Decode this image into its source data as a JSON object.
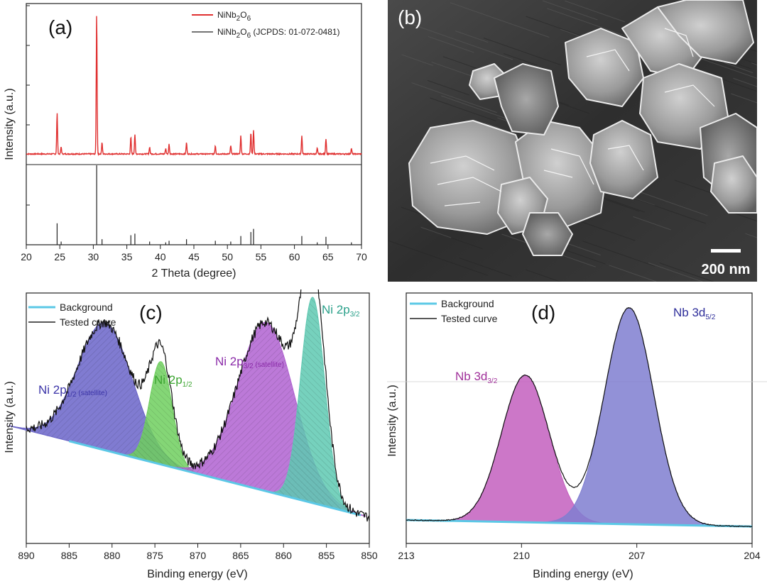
{
  "panel_a": {
    "letter": "(a)",
    "xlabel": "2 Theta (degree)",
    "ylabel": "Intensity (a.u.)",
    "legend": [
      {
        "label_main": "NiNb",
        "sub1": "2",
        "mid": "O",
        "sub2": "6",
        "tail": "",
        "color": "#e03030"
      },
      {
        "label_main": "NiNb",
        "sub1": "2",
        "mid": "O",
        "sub2": "6",
        "tail": " (JCPDS: 01-072-0481)",
        "color": "#222222"
      }
    ],
    "x_ticks": [
      "20",
      "25",
      "30",
      "35",
      "40",
      "45",
      "50",
      "55",
      "60",
      "65",
      "70"
    ]
  },
  "panel_b": {
    "letter": "(b)",
    "scale_bar": "200 nm"
  },
  "panel_c": {
    "letter": "(c)",
    "xlabel": "Binding energy (eV)",
    "ylabel": "Intensity (a.u.)",
    "legend": [
      {
        "label": "Background",
        "color": "#5bc8e6"
      },
      {
        "label": "Tested curve",
        "color": "#222222"
      }
    ],
    "x_ticks": [
      "890",
      "885",
      "880",
      "875",
      "870",
      "865",
      "860",
      "855",
      "850"
    ],
    "peaks": [
      {
        "main": "Ni 2p",
        "sub": "1/2",
        "extra": " (satellite)",
        "color": "#3b34a8"
      },
      {
        "main": "Ni 2p",
        "sub": "1/2",
        "extra": "",
        "color": "#3da532"
      },
      {
        "main": "Ni 2p",
        "sub": "3/2",
        "extra": " (satellite)",
        "color": "#8a2aa8"
      },
      {
        "main": "Ni 2p",
        "sub": "3/2",
        "extra": "",
        "color": "#2aa08a"
      }
    ]
  },
  "panel_d": {
    "letter": "(d)",
    "xlabel": "Binding energy (eV)",
    "ylabel": "Intensity (a.u.)",
    "legend": [
      {
        "label": "Background",
        "color": "#5bc8e6"
      },
      {
        "label": "Tested curve",
        "color": "#222222"
      }
    ],
    "x_ticks": [
      "213",
      "210",
      "207",
      "204"
    ],
    "peaks": [
      {
        "main": "Nb 3d",
        "sub": "3/2",
        "color": "#a0309a"
      },
      {
        "main": "Nb 3d",
        "sub": "5/2",
        "color": "#2e2e9a"
      }
    ]
  },
  "chart_data": [
    {
      "type": "line",
      "panel": "a",
      "xlabel": "2 Theta (degree)",
      "ylabel": "Intensity (a.u.)",
      "xlim": [
        20,
        70
      ],
      "series": [
        {
          "name": "NiNb2O6",
          "color": "#e03030",
          "peaks_x": [
            24.6,
            25.2,
            30.5,
            31.3,
            35.6,
            36.2,
            38.4,
            40.8,
            41.3,
            43.9,
            48.2,
            50.5,
            52.0,
            53.5,
            53.9,
            61.1,
            63.4,
            64.7,
            68.5
          ],
          "peaks_rel_intensity": [
            0.29,
            0.05,
            1.0,
            0.08,
            0.12,
            0.14,
            0.05,
            0.04,
            0.07,
            0.08,
            0.06,
            0.06,
            0.13,
            0.15,
            0.17,
            0.13,
            0.04,
            0.11,
            0.04
          ]
        },
        {
          "name": "NiNb2O6 (JCPDS: 01-072-0481)",
          "color": "#222222",
          "peaks_x": [
            24.6,
            25.2,
            30.5,
            31.3,
            35.6,
            36.2,
            38.4,
            40.8,
            41.3,
            43.9,
            48.2,
            50.5,
            52.0,
            53.5,
            53.9,
            61.1,
            63.4,
            64.7,
            68.5
          ],
          "peaks_rel_intensity": [
            0.27,
            0.04,
            1.0,
            0.07,
            0.12,
            0.14,
            0.04,
            0.03,
            0.05,
            0.07,
            0.05,
            0.04,
            0.11,
            0.16,
            0.2,
            0.11,
            0.03,
            0.1,
            0.03
          ]
        }
      ]
    },
    {
      "type": "area",
      "panel": "c",
      "xlabel": "Binding energy (eV)",
      "ylabel": "Intensity (a.u.)",
      "xlim": [
        890,
        850
      ],
      "series": [
        {
          "name": "Ni 2p1/2 (satellite)",
          "center": 880.8,
          "width": 3.2,
          "height": 0.62,
          "color": "#6a64c9"
        },
        {
          "name": "Ni 2p1/2",
          "center": 874.3,
          "width": 1.3,
          "height": 0.5,
          "color": "#6fcf5e"
        },
        {
          "name": "Ni 2p3/2 (satellite)",
          "center": 862.0,
          "width": 3.3,
          "height": 0.82,
          "color": "#b061d1"
        },
        {
          "name": "Ni 2p3/2",
          "center": 856.6,
          "width": 1.4,
          "height": 1.0,
          "color": "#5ec9b2"
        }
      ],
      "background": {
        "name": "Background",
        "from": [
          885,
          0.28
        ],
        "to": [
          851,
          -0.08
        ]
      }
    },
    {
      "type": "area",
      "panel": "d",
      "xlabel": "Binding energy (eV)",
      "ylabel": "Intensity (a.u.)",
      "xlim": [
        213,
        204
      ],
      "series": [
        {
          "name": "Nb 3d3/2",
          "center": 209.9,
          "width": 0.62,
          "height": 0.68,
          "color": "#c35fbe"
        },
        {
          "name": "Nb 3d5/2",
          "center": 207.2,
          "width": 0.64,
          "height": 1.0,
          "color": "#7f7ed0"
        }
      ],
      "background": {
        "name": "Background",
        "from": [
          213,
          0.0
        ],
        "to": [
          204,
          -0.03
        ]
      }
    }
  ]
}
